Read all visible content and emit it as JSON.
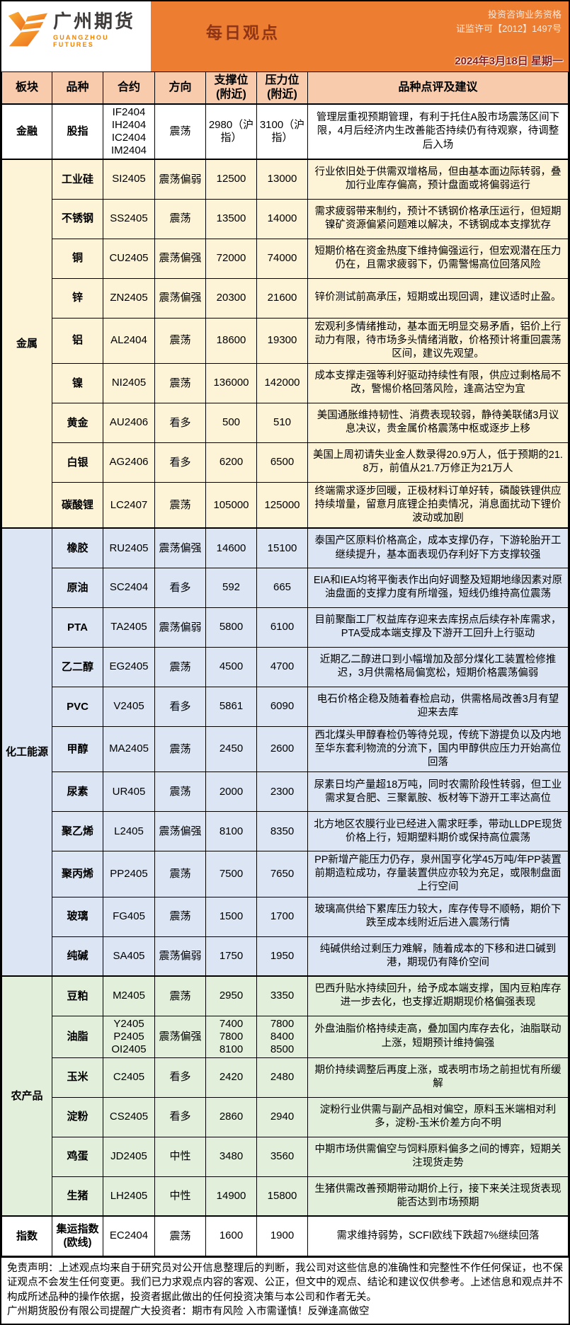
{
  "header": {
    "company_cn": "广州期货",
    "company_en": "GUANGZHOU FUTURES",
    "banner_title": "每日观点",
    "qualification_line1": "投资咨询业务资格",
    "qualification_line2": "证监许可【2012】1497号",
    "date": "2024年3月18日 星期一"
  },
  "colors": {
    "banner_orange": "#ED7D31",
    "header_row_bg": "#F8CBAD",
    "title_red": "#8F3517",
    "date_red": "#8B1A14",
    "logo_orange": "#F08300"
  },
  "table": {
    "columns": [
      "板块",
      "品种",
      "合约",
      "方向",
      "支撑位\n(附近)",
      "压力位\n(附近)",
      "品种点评及建议"
    ],
    "sections": [
      {
        "name": "金融",
        "bg": "#FFFFFF",
        "rows": [
          {
            "variety": "股指",
            "contract": "IF2404\nIH2404\nIC2404\nIM2404",
            "direction": "震荡",
            "support": "2980（沪指）",
            "pressure": "3100（沪指）",
            "comment": "管理层重视预期管理，有利于托住A股市场震荡区间下限，4月后经济内生改善能否持续仍有待观察，待调整后入场"
          }
        ]
      },
      {
        "name": "金属",
        "bg": "#FDF3D6",
        "rows": [
          {
            "variety": "工业硅",
            "contract": "SI2405",
            "direction": "震荡偏弱",
            "support": "12500",
            "pressure": "13000",
            "comment": "行业依旧处于供需双增格局，但由基本面边际转弱，叠加行业库存偏高，预计盘面或将偏弱运行"
          },
          {
            "variety": "不锈钢",
            "contract": "SS2405",
            "direction": "震荡",
            "support": "13500",
            "pressure": "14000",
            "comment": "需求疲弱带来制约，预计不锈钢价格承压运行，但短期镍矿资源偏紧问题难以解决，不锈钢成本支撑犹存"
          },
          {
            "variety": "铜",
            "contract": "CU2405",
            "direction": "震荡偏强",
            "support": "72000",
            "pressure": "74000",
            "comment": "短期价格在资金热度下维持偏强运行，但宏观潜在压力仍在，且需求疲弱下，仍需警惕高位回落风险"
          },
          {
            "variety": "锌",
            "contract": "ZN2405",
            "direction": "震荡偏强",
            "support": "20300",
            "pressure": "21600",
            "comment": "锌价测试前高承压，短期或出现回调，建议适时止盈。"
          },
          {
            "variety": "铝",
            "contract": "AL2404",
            "direction": "震荡",
            "support": "18600",
            "pressure": "19300",
            "comment": "宏观利多情绪推动，基本面无明显交易矛盾，铝价上行动力有限，待市场多头情绪消散，价格预计将重回震荡区间，建议先观望。"
          },
          {
            "variety": "镍",
            "contract": "NI2405",
            "direction": "震荡",
            "support": "136000",
            "pressure": "142000",
            "comment": "成本支撑走强等利好驱动持续性有限，供应过剩格局不改，警惕价格回落风险，逢高沽空为宜"
          },
          {
            "variety": "黄金",
            "contract": "AU2406",
            "direction": "看多",
            "support": "500",
            "pressure": "510",
            "comment": "美国通胀维持韧性、消费表现较弱，静待美联储3月议息决议，贵金属价格震荡中枢或逐步上移"
          },
          {
            "variety": "白银",
            "contract": "AG2406",
            "direction": "看多",
            "support": "6200",
            "pressure": "6500",
            "comment": "美国上周初请失业金人数录得20.9万人，低于预期的21.8万，前值从21.7万修正为21万人"
          },
          {
            "variety": "碳酸锂",
            "contract": "LC2407",
            "direction": "震荡",
            "support": "105000",
            "pressure": "125000",
            "comment": "终端需求逐步回暖，正极材料订单好转，磷酸铁锂供应持续增量，留意月底锂企拍卖情况，消息面扰动下锂价波动或加剧"
          }
        ]
      },
      {
        "name": "化工能源",
        "bg": "#DBE5F3",
        "rows": [
          {
            "variety": "橡胶",
            "contract": "RU2405",
            "direction": "震荡偏强",
            "support": "14600",
            "pressure": "15100",
            "comment": "泰国产区原料价格高企，成本支撑仍存，下游轮胎开工继续提升，基本面表现仍存利好下方支撑较强"
          },
          {
            "variety": "原油",
            "contract": "SC2404",
            "direction": "看多",
            "support": "592",
            "pressure": "665",
            "comment": "EIA和IEA均将平衡表作出向好调整及短期地缘因素对原油盘面的支撑力度有所增强，短线仍维持高位震荡"
          },
          {
            "variety": "PTA",
            "contract": "TA2405",
            "direction": "震荡偏弱",
            "support": "5800",
            "pressure": "6100",
            "comment": "目前聚酯工厂权益库存迎来去库拐点后续存补库需求，PTA受成本端支撑及下游开工回升上行驱动"
          },
          {
            "variety": "乙二醇",
            "contract": "EG2405",
            "direction": "震荡",
            "support": "4500",
            "pressure": "4700",
            "comment": "近期乙二醇进口到小幅增加及部分煤化工装置检修推迟，3月供需格局偏宽松，短期价格震荡偏弱"
          },
          {
            "variety": "PVC",
            "contract": "V2405",
            "direction": "看多",
            "support": "5861",
            "pressure": "6090",
            "comment": "电石价格企稳及随着春检启动，供需格局改善3月有望迎来去库"
          },
          {
            "variety": "甲醇",
            "contract": "MA2405",
            "direction": "震荡",
            "support": "2450",
            "pressure": "2600",
            "comment": "西北煤头甲醇春检仍等待兑现，传统下游提负以及内地至华东套利物流的分流下，国内甲醇供应压力开始高位回落"
          },
          {
            "variety": "尿素",
            "contract": "UR405",
            "direction": "震荡",
            "support": "2000",
            "pressure": "2300",
            "comment": "尿素日均产量超18万吨，同时农需阶段性转弱，但工业需求复合肥、三聚氰胺、板材等下游开工率达高位"
          },
          {
            "variety": "聚乙烯",
            "contract": "L2405",
            "direction": "震荡偏强",
            "support": "8100",
            "pressure": "8350",
            "comment": "北方地区农膜行业已经进入需求旺季，带动LLDPE现货价格上行，短期塑料期价或保持高位震荡"
          },
          {
            "variety": "聚丙烯",
            "contract": "PP2405",
            "direction": "震荡",
            "support": "7500",
            "pressure": "7650",
            "comment": "PP新增产能压力仍存，泉州国亨化学45万吨/年PP装置前期造粒成功，存量装置供应亦较为充足，或限制盘面上行空间"
          },
          {
            "variety": "玻璃",
            "contract": "FG405",
            "direction": "震荡",
            "support": "1500",
            "pressure": "1700",
            "comment": "玻璃高供给下累库压力较大，库存传导不顺畅，期价下跌至成本线附近后进入震荡行情"
          },
          {
            "variety": "纯碱",
            "contract": "SA405",
            "direction": "震荡偏弱",
            "support": "1750",
            "pressure": "1950",
            "comment": "纯碱供给过剩压力难解，随着成本的下移和进口碱到港，期现仍有降价空间"
          }
        ]
      },
      {
        "name": "农产品",
        "bg": "#E2EFDA",
        "rows": [
          {
            "variety": "豆粕",
            "contract": "M2405",
            "direction": "震荡",
            "support": "2950",
            "pressure": "3350",
            "comment": "巴西升贴水持续回升，给予成本端支撑，国内豆粕库存进一步去化，也支撑近期期现价格偏强表现"
          },
          {
            "variety": "油脂",
            "contract": "Y2405\nP2405\nOI2405",
            "direction": "震荡偏强",
            "support": "7400\n7800\n8100",
            "pressure": "7800\n8400\n8500",
            "comment": "外盘油脂价格持续走高，叠加国内库存去化，油脂联动上涨，短期预计维持偏强"
          },
          {
            "variety": "玉米",
            "contract": "C2405",
            "direction": "看多",
            "support": "2420",
            "pressure": "2480",
            "comment": "期价持续调整后再度上涨，或表明市场之前担忧有所缓解"
          },
          {
            "variety": "淀粉",
            "contract": "CS2405",
            "direction": "看多",
            "support": "2860",
            "pressure": "2940",
            "comment": "淀粉行业供需与副产品相对偏空，原料玉米端相对利多，淀粉-玉米价差方向不明"
          },
          {
            "variety": "鸡蛋",
            "contract": "JD2405",
            "direction": "中性",
            "support": "3480",
            "pressure": "3560",
            "comment": "中期市场供需偏空与饲料原料偏多之间的博弈，短期关注现货走势"
          },
          {
            "variety": "生猪",
            "contract": "LH2405",
            "direction": "中性",
            "support": "14900",
            "pressure": "15800",
            "comment": "生猪供需改善预期带动期价上行，接下来关注现货表现能否达到市场预期"
          }
        ]
      },
      {
        "name": "指数",
        "bg": "#FFFFFF",
        "rows": [
          {
            "variety": "集运指数\n(欧线)",
            "contract": "EC2404",
            "direction": "震荡",
            "support": "1600",
            "pressure": "1900",
            "comment": "需求维持弱势，SCFI欧线下跌超7%继续回落"
          }
        ]
      }
    ]
  },
  "footer": {
    "disclaimer": "免责声明：上述观点均来自于研究员对公开信息整理后的判断，我公司对这些信息的准确性和完整性不作任何保证，也不保证观点不会发生任何变更。我们已力求观点内容的客观、公正，但文中的观点、结论和建议仅供参考。上述信息和观点并不构成所述品种的操作依据，投资者据此做出的任何投资决策与本公司和作者无关。",
    "reminder": "广州期货股份有限公司提醒广大投资者：期市有风险 入市需谨慎！反弹逢高做空"
  }
}
